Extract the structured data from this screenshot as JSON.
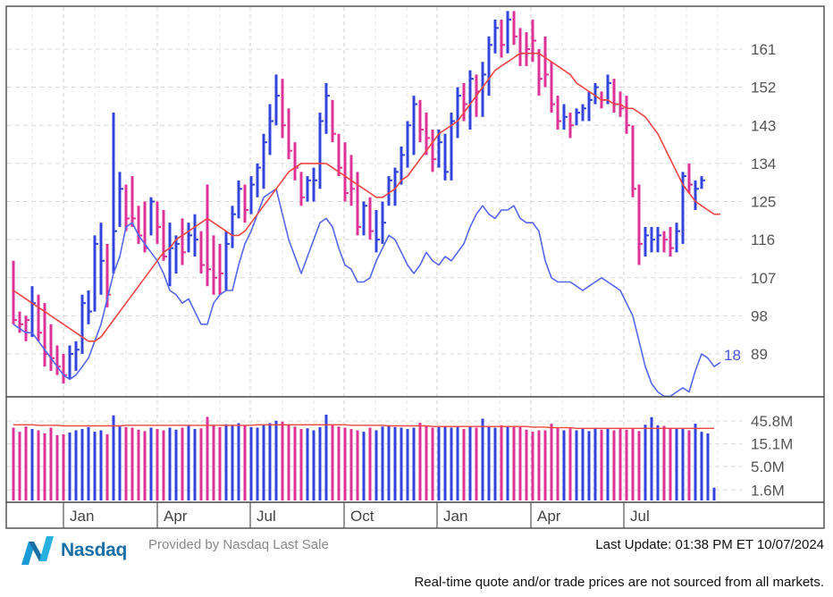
{
  "footer": {
    "brand": "Nasdaq",
    "provided_by": "Provided by Nasdaq Last Sale",
    "last_update": "Last Update: 01:38 PM ET 10/07/2024",
    "disclaimer": "Real-time quote and/or trade prices are not sourced from all markets."
  },
  "colors": {
    "up": "#3344dd",
    "down": "#dd3399",
    "ma": "#ee4444",
    "relative": "#5566ee",
    "grid": "#d8d8d8",
    "frame": "#555555"
  },
  "chart_data": {
    "type": "bar",
    "title": "",
    "xlabel": "",
    "ylabel": "",
    "grid": true,
    "price_axis": {
      "ticks": [
        161,
        152,
        143,
        134,
        125,
        116,
        107,
        98,
        89
      ],
      "ylim": [
        78,
        170
      ],
      "side": "right"
    },
    "volume_axis": {
      "tick_labels": [
        "45.8M",
        "15.1M",
        "5.0M",
        "1.6M"
      ],
      "tick_values": [
        45.8,
        15.1,
        5.0,
        1.6
      ],
      "scale": "log"
    },
    "month_labels": [
      "Jan",
      "Apr",
      "Jul",
      "Oct",
      "Jan",
      "Apr",
      "Jul"
    ],
    "relative_strength_label": "18",
    "weekly_bars": [
      {
        "h": 111,
        "l": 96,
        "c": 97,
        "up": false
      },
      {
        "h": 99,
        "l": 94,
        "c": 96,
        "up": false
      },
      {
        "h": 98,
        "l": 92,
        "c": 97,
        "up": false
      },
      {
        "h": 105,
        "l": 93,
        "c": 101,
        "up": true
      },
      {
        "h": 103,
        "l": 92,
        "c": 94,
        "up": false
      },
      {
        "h": 101,
        "l": 86,
        "c": 89,
        "up": false
      },
      {
        "h": 96,
        "l": 85,
        "c": 88,
        "up": false
      },
      {
        "h": 91,
        "l": 84,
        "c": 86,
        "up": false
      },
      {
        "h": 89,
        "l": 82,
        "c": 84,
        "up": false
      },
      {
        "h": 91,
        "l": 83,
        "c": 89,
        "up": true
      },
      {
        "h": 92,
        "l": 85,
        "c": 90,
        "up": true
      },
      {
        "h": 103,
        "l": 89,
        "c": 101,
        "up": true
      },
      {
        "h": 104,
        "l": 96,
        "c": 99,
        "up": true
      },
      {
        "h": 117,
        "l": 99,
        "c": 115,
        "up": true
      },
      {
        "h": 120,
        "l": 103,
        "c": 111,
        "up": true
      },
      {
        "h": 115,
        "l": 100,
        "c": 103,
        "up": false
      },
      {
        "h": 146,
        "l": 108,
        "c": 118,
        "up": true
      },
      {
        "h": 132,
        "l": 119,
        "c": 128,
        "up": true
      },
      {
        "h": 129,
        "l": 118,
        "c": 121,
        "up": false
      },
      {
        "h": 131,
        "l": 119,
        "c": 121,
        "up": false
      },
      {
        "h": 124,
        "l": 115,
        "c": 117,
        "up": false
      },
      {
        "h": 125,
        "l": 113,
        "c": 114,
        "up": false
      },
      {
        "h": 126,
        "l": 117,
        "c": 125,
        "up": true
      },
      {
        "h": 125,
        "l": 115,
        "c": 119,
        "up": false
      },
      {
        "h": 123,
        "l": 111,
        "c": 112,
        "up": false
      },
      {
        "h": 120,
        "l": 105,
        "c": 114,
        "up": true
      },
      {
        "h": 117,
        "l": 108,
        "c": 115,
        "up": true
      },
      {
        "h": 121,
        "l": 110,
        "c": 113,
        "up": false
      },
      {
        "h": 120,
        "l": 113,
        "c": 117,
        "up": true
      },
      {
        "h": 122,
        "l": 112,
        "c": 116,
        "up": true
      },
      {
        "h": 118,
        "l": 108,
        "c": 110,
        "up": false
      },
      {
        "h": 129,
        "l": 105,
        "c": 109,
        "up": false
      },
      {
        "h": 117,
        "l": 103,
        "c": 107,
        "up": false
      },
      {
        "h": 115,
        "l": 103,
        "c": 108,
        "up": false
      },
      {
        "h": 118,
        "l": 104,
        "c": 115,
        "up": true
      },
      {
        "h": 124,
        "l": 114,
        "c": 122,
        "up": true
      },
      {
        "h": 130,
        "l": 121,
        "c": 128,
        "up": true
      },
      {
        "h": 129,
        "l": 120,
        "c": 123,
        "up": false
      },
      {
        "h": 131,
        "l": 122,
        "c": 129,
        "up": true
      },
      {
        "h": 134,
        "l": 126,
        "c": 133,
        "up": true
      },
      {
        "h": 141,
        "l": 128,
        "c": 139,
        "up": true
      },
      {
        "h": 148,
        "l": 136,
        "c": 144,
        "up": true
      },
      {
        "h": 155,
        "l": 143,
        "c": 150,
        "up": true
      },
      {
        "h": 154,
        "l": 140,
        "c": 143,
        "up": false
      },
      {
        "h": 147,
        "l": 135,
        "c": 137,
        "up": false
      },
      {
        "h": 139,
        "l": 130,
        "c": 133,
        "up": false
      },
      {
        "h": 132,
        "l": 124,
        "c": 126,
        "up": false
      },
      {
        "h": 131,
        "l": 125,
        "c": 130,
        "up": true
      },
      {
        "h": 133,
        "l": 125,
        "c": 130,
        "up": true
      },
      {
        "h": 146,
        "l": 128,
        "c": 144,
        "up": true
      },
      {
        "h": 153,
        "l": 141,
        "c": 150,
        "up": true
      },
      {
        "h": 149,
        "l": 139,
        "c": 141,
        "up": false
      },
      {
        "h": 141,
        "l": 131,
        "c": 133,
        "up": false
      },
      {
        "h": 139,
        "l": 125,
        "c": 127,
        "up": false
      },
      {
        "h": 136,
        "l": 124,
        "c": 128,
        "up": false
      },
      {
        "h": 132,
        "l": 117,
        "c": 119,
        "up": false
      },
      {
        "h": 125,
        "l": 117,
        "c": 124,
        "up": true
      },
      {
        "h": 126,
        "l": 116,
        "c": 118,
        "up": false
      },
      {
        "h": 123,
        "l": 113,
        "c": 116,
        "up": true
      },
      {
        "h": 125,
        "l": 115,
        "c": 120,
        "up": true
      },
      {
        "h": 131,
        "l": 124,
        "c": 130,
        "up": true
      },
      {
        "h": 133,
        "l": 124,
        "c": 132,
        "up": true
      },
      {
        "h": 138,
        "l": 129,
        "c": 136,
        "up": true
      },
      {
        "h": 144,
        "l": 133,
        "c": 143,
        "up": true
      },
      {
        "h": 150,
        "l": 136,
        "c": 148,
        "up": true
      },
      {
        "h": 149,
        "l": 139,
        "c": 142,
        "up": false
      },
      {
        "h": 146,
        "l": 136,
        "c": 140,
        "up": false
      },
      {
        "h": 142,
        "l": 132,
        "c": 135,
        "up": false
      },
      {
        "h": 142,
        "l": 133,
        "c": 139,
        "up": true
      },
      {
        "h": 141,
        "l": 130,
        "c": 132,
        "up": true
      },
      {
        "h": 146,
        "l": 130,
        "c": 144,
        "up": true
      },
      {
        "h": 152,
        "l": 140,
        "c": 150,
        "up": true
      },
      {
        "h": 153,
        "l": 144,
        "c": 148,
        "up": false
      },
      {
        "h": 156,
        "l": 142,
        "c": 154,
        "up": true
      },
      {
        "h": 155,
        "l": 145,
        "c": 151,
        "up": false
      },
      {
        "h": 158,
        "l": 145,
        "c": 155,
        "up": true
      },
      {
        "h": 164,
        "l": 150,
        "c": 162,
        "up": true
      },
      {
        "h": 168,
        "l": 160,
        "c": 166,
        "up": true
      },
      {
        "h": 168,
        "l": 159,
        "c": 162,
        "up": false
      },
      {
        "h": 170,
        "l": 160,
        "c": 168,
        "up": true
      },
      {
        "h": 170,
        "l": 162,
        "c": 164,
        "up": false
      },
      {
        "h": 166,
        "l": 157,
        "c": 160,
        "up": false
      },
      {
        "h": 165,
        "l": 157,
        "c": 161,
        "up": false
      },
      {
        "h": 168,
        "l": 158,
        "c": 163,
        "up": false
      },
      {
        "h": 161,
        "l": 150,
        "c": 154,
        "up": false
      },
      {
        "h": 164,
        "l": 152,
        "c": 155,
        "up": false
      },
      {
        "h": 158,
        "l": 146,
        "c": 148,
        "up": false
      },
      {
        "h": 150,
        "l": 142,
        "c": 144,
        "up": false
      },
      {
        "h": 148,
        "l": 142,
        "c": 145,
        "up": true
      },
      {
        "h": 146,
        "l": 140,
        "c": 143,
        "up": false
      },
      {
        "h": 147,
        "l": 143,
        "c": 146,
        "up": true
      },
      {
        "h": 148,
        "l": 144,
        "c": 147,
        "up": true
      },
      {
        "h": 151,
        "l": 144,
        "c": 149,
        "up": true
      },
      {
        "h": 153,
        "l": 148,
        "c": 152,
        "up": true
      },
      {
        "h": 151,
        "l": 147,
        "c": 149,
        "up": false
      },
      {
        "h": 155,
        "l": 148,
        "c": 153,
        "up": true
      },
      {
        "h": 154,
        "l": 146,
        "c": 148,
        "up": false
      },
      {
        "h": 151,
        "l": 145,
        "c": 147,
        "up": false
      },
      {
        "h": 150,
        "l": 141,
        "c": 143,
        "up": false
      },
      {
        "h": 143,
        "l": 126,
        "c": 128,
        "up": false
      },
      {
        "h": 129,
        "l": 110,
        "c": 115,
        "up": false
      },
      {
        "h": 119,
        "l": 112,
        "c": 117,
        "up": true
      },
      {
        "h": 119,
        "l": 113,
        "c": 116,
        "up": true
      },
      {
        "h": 119,
        "l": 113,
        "c": 117,
        "up": true
      },
      {
        "h": 118,
        "l": 113,
        "c": 116,
        "up": false
      },
      {
        "h": 119,
        "l": 112,
        "c": 114,
        "up": false
      },
      {
        "h": 120,
        "l": 113,
        "c": 118,
        "up": true
      },
      {
        "h": 132,
        "l": 115,
        "c": 131,
        "up": true
      },
      {
        "h": 134,
        "l": 127,
        "c": 129,
        "up": false
      },
      {
        "h": 130,
        "l": 123,
        "c": 128,
        "up": true
      },
      {
        "h": 131,
        "l": 128,
        "c": 130,
        "up": true
      }
    ],
    "moving_average": [
      104,
      103,
      102,
      101,
      100,
      99,
      98,
      97,
      96,
      95,
      94,
      93,
      92,
      92,
      93,
      95,
      97,
      99,
      101,
      103,
      105,
      107,
      109,
      111,
      113,
      114,
      116,
      117,
      118,
      119,
      120,
      121,
      120,
      119,
      118,
      117,
      117,
      118,
      120,
      122,
      124,
      126,
      128,
      130,
      132,
      133,
      134,
      134,
      134,
      134,
      134,
      133,
      132,
      131,
      130,
      129,
      128,
      127,
      126,
      126,
      127,
      128,
      130,
      131,
      133,
      135,
      137,
      139,
      141,
      142,
      143,
      144,
      146,
      148,
      150,
      152,
      154,
      156,
      157,
      158,
      159,
      160,
      160,
      160,
      160,
      159,
      158,
      157,
      156,
      155,
      153,
      152,
      151,
      150,
      149,
      149,
      148,
      148,
      147,
      147,
      146,
      145,
      143,
      141,
      138,
      135,
      132,
      129,
      127,
      125,
      124,
      123,
      122,
      122
    ],
    "relative_strength": [
      96,
      95,
      94,
      94,
      92,
      90,
      88,
      86,
      84,
      83,
      84,
      86,
      88,
      92,
      96,
      102,
      108,
      112,
      119,
      120,
      117,
      115,
      113,
      111,
      108,
      104,
      103,
      101,
      102,
      99,
      96,
      96,
      101,
      103,
      104,
      104,
      110,
      115,
      118,
      122,
      126,
      127,
      128,
      122,
      116,
      112,
      108,
      112,
      116,
      120,
      121,
      119,
      114,
      110,
      109,
      106,
      106,
      107,
      111,
      114,
      117,
      116,
      113,
      110,
      108,
      110,
      113,
      111,
      110,
      112,
      111,
      113,
      115,
      119,
      122,
      124,
      122,
      121,
      123,
      123,
      124,
      121,
      120,
      120,
      118,
      111,
      107,
      106,
      106,
      106,
      105,
      104,
      105,
      106,
      107,
      106,
      105,
      104,
      101,
      98,
      92,
      86,
      82,
      80,
      79,
      79,
      80,
      81,
      80,
      85,
      89,
      88,
      86,
      87
    ],
    "volume_series": [
      {
        "name": "weekly volume",
        "unit": "M",
        "values": [
          33,
          27,
          35,
          31,
          29,
          25,
          33,
          23,
          24,
          26,
          29,
          31,
          34,
          27,
          29,
          24,
          60,
          35,
          34,
          33,
          30,
          28,
          33,
          31,
          29,
          33,
          30,
          33,
          37,
          31,
          32,
          56,
          38,
          34,
          39,
          38,
          41,
          36,
          34,
          33,
          37,
          41,
          46,
          44,
          39,
          35,
          31,
          32,
          29,
          34,
          62,
          38,
          35,
          33,
          31,
          29,
          27,
          33,
          29,
          35,
          37,
          34,
          33,
          31,
          33,
          42,
          36,
          33,
          34,
          35,
          33,
          36,
          31,
          35,
          33,
          51,
          36,
          33,
          37,
          35,
          34,
          34,
          30,
          27,
          29,
          29,
          40,
          33,
          29,
          32,
          29,
          31,
          28,
          33,
          30,
          31,
          29,
          33,
          30,
          31,
          28,
          38,
          55,
          37,
          36,
          33,
          31,
          32,
          29,
          40,
          27,
          25,
          1.8
        ]
      },
      {
        "name": "volume average",
        "unit": "M",
        "values": [
          38,
          38,
          38,
          38,
          37,
          37,
          37,
          37,
          36,
          36,
          36,
          36,
          36,
          36,
          36,
          36,
          36,
          36,
          37,
          37,
          37,
          37,
          37,
          37,
          37,
          37,
          37,
          37,
          37,
          37,
          37,
          37,
          37,
          37,
          37,
          37,
          37,
          37,
          37,
          38,
          38,
          38,
          38,
          38,
          38,
          38,
          38,
          38,
          38,
          38,
          38,
          38,
          38,
          38,
          37,
          37,
          37,
          37,
          37,
          37,
          36,
          36,
          36,
          36,
          36,
          36,
          36,
          35,
          35,
          35,
          35,
          35,
          35,
          35,
          35,
          35,
          35,
          35,
          35,
          35,
          35,
          35,
          35,
          34,
          34,
          34,
          33,
          33,
          33,
          33,
          32,
          32,
          32,
          32,
          32,
          32,
          32,
          32,
          32,
          32,
          32,
          32,
          32,
          32,
          32,
          32,
          32,
          32,
          32,
          32,
          32,
          32,
          32
        ]
      }
    ]
  }
}
